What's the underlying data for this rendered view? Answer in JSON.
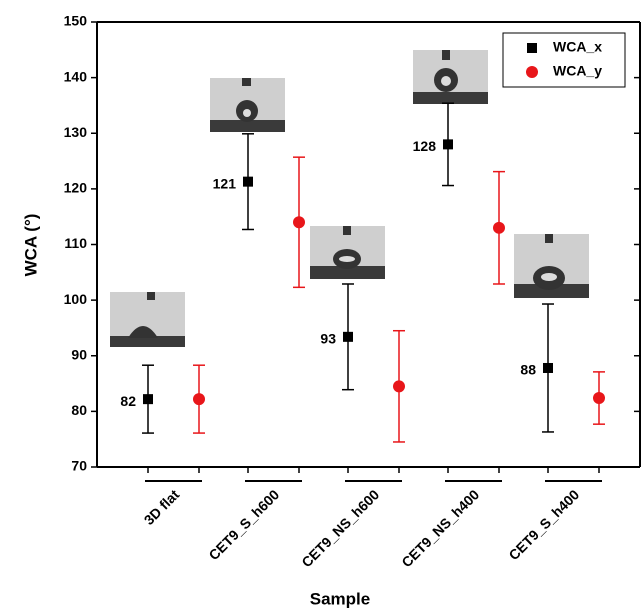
{
  "chart_data": {
    "type": "scatter",
    "x_label": "Sample",
    "y_label": "WCA (°)",
    "categories": [
      "3D flat",
      "CET9_S_h600",
      "CET9_NS_h600",
      "CET9_NS_h400",
      "CET9_S_h400"
    ],
    "series": [
      {
        "name": "WCA_x",
        "color": "#000000",
        "marker": "square",
        "values": [
          82.2,
          121.3,
          93.4,
          128,
          87.8
        ],
        "errors": [
          6.1,
          8.6,
          9.5,
          7.4,
          11.5
        ],
        "value_labels": [
          "82",
          "121",
          "93",
          "128",
          "88"
        ]
      },
      {
        "name": "WCA_y",
        "color": "#e8161a",
        "marker": "circle",
        "values": [
          82.2,
          114.0,
          84.5,
          113.0,
          82.4
        ],
        "errors": [
          6.1,
          11.7,
          10.0,
          10.1,
          4.7
        ]
      }
    ],
    "ylim": [
      70,
      150
    ],
    "yticks": [
      70,
      80,
      90,
      100,
      110,
      120,
      130,
      140,
      150
    ],
    "legend": "upper right"
  }
}
